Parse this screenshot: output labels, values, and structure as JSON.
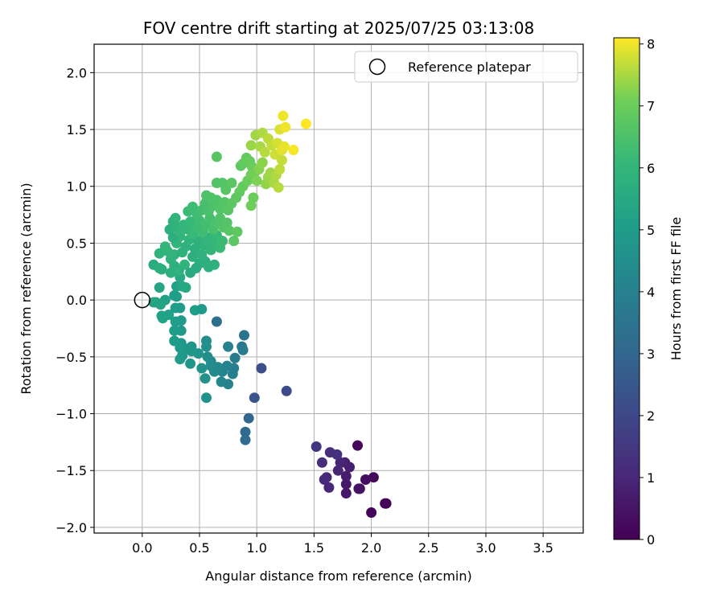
{
  "chart_data": {
    "type": "scatter",
    "title": "FOV centre drift starting at 2025/07/25 03:13:08",
    "xlabel": "Angular distance from reference (arcmin)",
    "ylabel": "Rotation from reference (arcmin)",
    "xlim": [
      -0.42,
      3.85
    ],
    "ylim": [
      -2.05,
      2.25
    ],
    "xticks": [
      0.0,
      0.5,
      1.0,
      1.5,
      2.0,
      2.5,
      3.0,
      3.5
    ],
    "xtick_labels": [
      "0.0",
      "0.5",
      "1.0",
      "1.5",
      "2.0",
      "2.5",
      "3.0",
      "3.5"
    ],
    "yticks": [
      2.0,
      1.5,
      1.0,
      0.5,
      0.0,
      -0.5,
      -1.0,
      -1.5,
      -2.0
    ],
    "ytick_labels": [
      "2.0",
      "1.5",
      "1.0",
      "0.5",
      "0.0",
      "−0.5",
      "−1.0",
      "−1.5",
      "−2.0"
    ],
    "grid": true,
    "colormap": "viridis",
    "colorbar": {
      "label": "Hours from first FF file",
      "range": [
        0,
        8.1
      ],
      "ticks": [
        0,
        1,
        2,
        3,
        4,
        5,
        6,
        7,
        8
      ],
      "tick_labels": [
        "0",
        "1",
        "2",
        "3",
        "4",
        "5",
        "6",
        "7",
        "8"
      ]
    },
    "legend": {
      "placement": "top-right",
      "entries": [
        "Reference platepar"
      ]
    },
    "reference_point": {
      "x": 0.0,
      "y": 0.0,
      "label": "Reference platepar"
    },
    "points": [
      {
        "x": 2.0,
        "y": -1.87,
        "t": 0.1
      },
      {
        "x": 2.13,
        "y": -1.79,
        "t": 0.05
      },
      {
        "x": 2.12,
        "y": -1.79,
        "t": 0.1
      },
      {
        "x": 1.88,
        "y": -1.28,
        "t": 0.15
      },
      {
        "x": 2.02,
        "y": -1.56,
        "t": 0.2
      },
      {
        "x": 1.95,
        "y": -1.58,
        "t": 0.3
      },
      {
        "x": 1.9,
        "y": -1.66,
        "t": 0.4
      },
      {
        "x": 1.89,
        "y": -1.66,
        "t": 0.45
      },
      {
        "x": 1.78,
        "y": -1.7,
        "t": 0.55
      },
      {
        "x": 1.78,
        "y": -1.62,
        "t": 0.6
      },
      {
        "x": 1.78,
        "y": -1.55,
        "t": 0.7
      },
      {
        "x": 1.81,
        "y": -1.47,
        "t": 0.75
      },
      {
        "x": 1.77,
        "y": -1.43,
        "t": 0.8
      },
      {
        "x": 1.73,
        "y": -1.43,
        "t": 0.9
      },
      {
        "x": 1.71,
        "y": -1.5,
        "t": 0.95
      },
      {
        "x": 1.63,
        "y": -1.65,
        "t": 1.0
      },
      {
        "x": 1.61,
        "y": -1.56,
        "t": 1.05
      },
      {
        "x": 1.59,
        "y": -1.58,
        "t": 1.1
      },
      {
        "x": 1.57,
        "y": -1.43,
        "t": 1.2
      },
      {
        "x": 1.64,
        "y": -1.34,
        "t": 1.25
      },
      {
        "x": 1.7,
        "y": -1.36,
        "t": 1.3
      },
      {
        "x": 1.52,
        "y": -1.29,
        "t": 1.4
      },
      {
        "x": 1.26,
        "y": -0.8,
        "t": 2.05
      },
      {
        "x": 1.04,
        "y": -0.6,
        "t": 2.2
      },
      {
        "x": 0.98,
        "y": -0.86,
        "t": 2.4
      },
      {
        "x": 0.93,
        "y": -1.04,
        "t": 3.0
      },
      {
        "x": 0.9,
        "y": -1.16,
        "t": 3.1
      },
      {
        "x": 0.9,
        "y": -1.23,
        "t": 3.2
      },
      {
        "x": 0.65,
        "y": -0.19,
        "t": 3.3
      },
      {
        "x": 0.89,
        "y": -0.31,
        "t": 3.5
      },
      {
        "x": 0.87,
        "y": -0.41,
        "t": 3.6
      },
      {
        "x": 0.88,
        "y": -0.44,
        "t": 3.7
      },
      {
        "x": 0.81,
        "y": -0.51,
        "t": 3.8
      },
      {
        "x": 0.8,
        "y": -0.6,
        "t": 3.9
      },
      {
        "x": 0.79,
        "y": -0.65,
        "t": 3.95
      },
      {
        "x": 0.75,
        "y": -0.41,
        "t": 4.0
      },
      {
        "x": 0.74,
        "y": -0.58,
        "t": 4.05
      },
      {
        "x": 0.75,
        "y": -0.74,
        "t": 4.1
      },
      {
        "x": 0.7,
        "y": -0.63,
        "t": 4.15
      },
      {
        "x": 0.69,
        "y": -0.72,
        "t": 4.2
      },
      {
        "x": 0.66,
        "y": -0.59,
        "t": 4.25
      },
      {
        "x": 0.63,
        "y": -0.63,
        "t": 4.3
      },
      {
        "x": 0.6,
        "y": -0.54,
        "t": 4.35
      },
      {
        "x": 0.6,
        "y": -0.58,
        "t": 4.4
      },
      {
        "x": 0.57,
        "y": -0.5,
        "t": 4.45
      },
      {
        "x": 0.56,
        "y": -0.36,
        "t": 4.5
      },
      {
        "x": 0.56,
        "y": -0.41,
        "t": 4.55
      },
      {
        "x": 0.56,
        "y": -0.86,
        "t": 4.6
      },
      {
        "x": 0.55,
        "y": -0.69,
        "t": 4.62
      },
      {
        "x": 0.52,
        "y": -0.6,
        "t": 4.65
      },
      {
        "x": 0.49,
        "y": -0.47,
        "t": 4.7
      },
      {
        "x": 0.43,
        "y": -0.41,
        "t": 4.72
      },
      {
        "x": 0.42,
        "y": -0.56,
        "t": 4.75
      },
      {
        "x": 0.43,
        "y": -0.45,
        "t": 4.78
      },
      {
        "x": 0.38,
        "y": -0.43,
        "t": 4.8
      },
      {
        "x": 0.35,
        "y": -0.49,
        "t": 4.82
      },
      {
        "x": 0.34,
        "y": -0.38,
        "t": 4.85
      },
      {
        "x": 0.34,
        "y": -0.27,
        "t": 4.87
      },
      {
        "x": 0.34,
        "y": -0.18,
        "t": 4.9
      },
      {
        "x": 0.33,
        "y": -0.07,
        "t": 4.92
      },
      {
        "x": 0.33,
        "y": -0.42,
        "t": 4.95
      },
      {
        "x": 0.33,
        "y": -0.52,
        "t": 4.97
      },
      {
        "x": 0.28,
        "y": -0.36,
        "t": 5.0
      },
      {
        "x": 0.28,
        "y": -0.27,
        "t": 5.02
      },
      {
        "x": 0.29,
        "y": -0.19,
        "t": 5.05
      },
      {
        "x": 0.29,
        "y": -0.07,
        "t": 5.07
      },
      {
        "x": 0.3,
        "y": 0.03,
        "t": 5.1
      },
      {
        "x": 0.28,
        "y": 0.04,
        "t": 5.12
      },
      {
        "x": 0.3,
        "y": 0.12,
        "t": 5.15
      },
      {
        "x": 0.23,
        "y": -0.13,
        "t": 5.17
      },
      {
        "x": 0.2,
        "y": 0.0,
        "t": 5.2
      },
      {
        "x": 0.17,
        "y": -0.14,
        "t": 5.22
      },
      {
        "x": 0.18,
        "y": -0.16,
        "t": 5.25
      },
      {
        "x": 0.16,
        "y": -0.04,
        "t": 5.27
      },
      {
        "x": 0.12,
        "y": -0.02,
        "t": 5.3
      },
      {
        "x": 0.1,
        "y": -0.02,
        "t": 5.32
      },
      {
        "x": 0.15,
        "y": 0.11,
        "t": 5.35
      },
      {
        "x": 0.35,
        "y": 0.12,
        "t": 5.4
      },
      {
        "x": 0.38,
        "y": 0.11,
        "t": 5.45
      },
      {
        "x": 0.33,
        "y": 0.2,
        "t": 5.5
      },
      {
        "x": 0.46,
        "y": -0.09,
        "t": 5.1
      },
      {
        "x": 0.52,
        "y": -0.08,
        "t": 5.0
      },
      {
        "x": 0.1,
        "y": 0.31,
        "t": 5.6
      },
      {
        "x": 0.15,
        "y": 0.28,
        "t": 5.65
      },
      {
        "x": 0.17,
        "y": 0.27,
        "t": 5.7
      },
      {
        "x": 0.25,
        "y": 0.24,
        "t": 5.75
      },
      {
        "x": 0.28,
        "y": 0.3,
        "t": 5.8
      },
      {
        "x": 0.32,
        "y": 0.26,
        "t": 5.85
      },
      {
        "x": 0.37,
        "y": 0.31,
        "t": 5.9
      },
      {
        "x": 0.42,
        "y": 0.24,
        "t": 5.55
      },
      {
        "x": 0.47,
        "y": 0.28,
        "t": 5.6
      },
      {
        "x": 0.5,
        "y": 0.32,
        "t": 5.65
      },
      {
        "x": 0.55,
        "y": 0.34,
        "t": 5.7
      },
      {
        "x": 0.58,
        "y": 0.29,
        "t": 5.75
      },
      {
        "x": 0.63,
        "y": 0.31,
        "t": 5.8
      },
      {
        "x": 0.15,
        "y": 0.41,
        "t": 5.9
      },
      {
        "x": 0.2,
        "y": 0.47,
        "t": 5.95
      },
      {
        "x": 0.22,
        "y": 0.43,
        "t": 6.0
      },
      {
        "x": 0.25,
        "y": 0.36,
        "t": 5.85
      },
      {
        "x": 0.28,
        "y": 0.4,
        "t": 5.9
      },
      {
        "x": 0.3,
        "y": 0.5,
        "t": 5.95
      },
      {
        "x": 0.33,
        "y": 0.56,
        "t": 6.0
      },
      {
        "x": 0.35,
        "y": 0.42,
        "t": 5.8
      },
      {
        "x": 0.38,
        "y": 0.47,
        "t": 5.85
      },
      {
        "x": 0.41,
        "y": 0.53,
        "t": 5.9
      },
      {
        "x": 0.44,
        "y": 0.38,
        "t": 5.7
      },
      {
        "x": 0.46,
        "y": 0.45,
        "t": 5.75
      },
      {
        "x": 0.49,
        "y": 0.52,
        "t": 5.8
      },
      {
        "x": 0.52,
        "y": 0.4,
        "t": 5.85
      },
      {
        "x": 0.54,
        "y": 0.48,
        "t": 5.9
      },
      {
        "x": 0.57,
        "y": 0.55,
        "t": 5.95
      },
      {
        "x": 0.6,
        "y": 0.44,
        "t": 6.0
      },
      {
        "x": 0.62,
        "y": 0.5,
        "t": 6.05
      },
      {
        "x": 0.65,
        "y": 0.57,
        "t": 6.1
      },
      {
        "x": 0.68,
        "y": 0.46,
        "t": 6.15
      },
      {
        "x": 0.7,
        "y": 0.52,
        "t": 6.2
      },
      {
        "x": 0.27,
        "y": 0.55,
        "t": 5.7
      },
      {
        "x": 0.24,
        "y": 0.62,
        "t": 5.75
      },
      {
        "x": 0.27,
        "y": 0.69,
        "t": 5.8
      },
      {
        "x": 0.3,
        "y": 0.64,
        "t": 5.85
      },
      {
        "x": 0.29,
        "y": 0.72,
        "t": 5.9
      },
      {
        "x": 0.33,
        "y": 0.6,
        "t": 5.95
      },
      {
        "x": 0.36,
        "y": 0.66,
        "t": 6.0
      },
      {
        "x": 0.4,
        "y": 0.62,
        "t": 6.05
      },
      {
        "x": 0.42,
        "y": 0.69,
        "t": 6.1
      },
      {
        "x": 0.45,
        "y": 0.58,
        "t": 6.15
      },
      {
        "x": 0.48,
        "y": 0.64,
        "t": 6.2
      },
      {
        "x": 0.5,
        "y": 0.7,
        "t": 6.25
      },
      {
        "x": 0.53,
        "y": 0.6,
        "t": 6.3
      },
      {
        "x": 0.56,
        "y": 0.66,
        "t": 6.35
      },
      {
        "x": 0.59,
        "y": 0.72,
        "t": 6.4
      },
      {
        "x": 0.62,
        "y": 0.62,
        "t": 6.45
      },
      {
        "x": 0.65,
        "y": 0.67,
        "t": 6.5
      },
      {
        "x": 0.68,
        "y": 0.72,
        "t": 6.55
      },
      {
        "x": 0.71,
        "y": 0.64,
        "t": 6.6
      },
      {
        "x": 0.74,
        "y": 0.68,
        "t": 6.65
      },
      {
        "x": 0.76,
        "y": 0.61,
        "t": 6.7
      },
      {
        "x": 0.8,
        "y": 0.52,
        "t": 6.75
      },
      {
        "x": 0.83,
        "y": 0.6,
        "t": 6.8
      },
      {
        "x": 0.4,
        "y": 0.78,
        "t": 6.2
      },
      {
        "x": 0.44,
        "y": 0.82,
        "t": 6.25
      },
      {
        "x": 0.48,
        "y": 0.75,
        "t": 6.3
      },
      {
        "x": 0.52,
        "y": 0.79,
        "t": 6.35
      },
      {
        "x": 0.55,
        "y": 0.85,
        "t": 6.4
      },
      {
        "x": 0.58,
        "y": 0.78,
        "t": 6.45
      },
      {
        "x": 0.62,
        "y": 0.83,
        "t": 6.5
      },
      {
        "x": 0.65,
        "y": 0.88,
        "t": 6.55
      },
      {
        "x": 0.68,
        "y": 0.8,
        "t": 6.6
      },
      {
        "x": 0.72,
        "y": 0.86,
        "t": 6.65
      },
      {
        "x": 0.75,
        "y": 0.79,
        "t": 6.7
      },
      {
        "x": 0.78,
        "y": 0.85,
        "t": 6.75
      },
      {
        "x": 0.82,
        "y": 0.9,
        "t": 6.8
      },
      {
        "x": 0.85,
        "y": 0.95,
        "t": 6.85
      },
      {
        "x": 0.88,
        "y": 1.0,
        "t": 6.9
      },
      {
        "x": 0.56,
        "y": 0.92,
        "t": 6.5
      },
      {
        "x": 0.6,
        "y": 0.9,
        "t": 6.55
      },
      {
        "x": 0.65,
        "y": 1.03,
        "t": 6.6
      },
      {
        "x": 0.7,
        "y": 1.03,
        "t": 6.65
      },
      {
        "x": 0.73,
        "y": 0.97,
        "t": 6.7
      },
      {
        "x": 0.78,
        "y": 1.03,
        "t": 6.75
      },
      {
        "x": 0.86,
        "y": 1.18,
        "t": 6.8
      },
      {
        "x": 0.88,
        "y": 1.2,
        "t": 6.85
      },
      {
        "x": 0.91,
        "y": 1.25,
        "t": 6.9
      },
      {
        "x": 0.94,
        "y": 1.22,
        "t": 6.95
      },
      {
        "x": 0.96,
        "y": 1.17,
        "t": 7.0
      },
      {
        "x": 0.92,
        "y": 1.05,
        "t": 7.0
      },
      {
        "x": 0.95,
        "y": 1.1,
        "t": 7.05
      },
      {
        "x": 0.98,
        "y": 1.12,
        "t": 7.1
      },
      {
        "x": 0.97,
        "y": 0.9,
        "t": 7.0
      },
      {
        "x": 0.95,
        "y": 0.83,
        "t": 7.05
      },
      {
        "x": 0.65,
        "y": 1.26,
        "t": 6.7
      },
      {
        "x": 1.0,
        "y": 1.05,
        "t": 7.2
      },
      {
        "x": 1.02,
        "y": 1.15,
        "t": 7.25
      },
      {
        "x": 1.05,
        "y": 1.21,
        "t": 7.3
      },
      {
        "x": 1.08,
        "y": 1.02,
        "t": 7.35
      },
      {
        "x": 1.1,
        "y": 1.08,
        "t": 7.4
      },
      {
        "x": 1.12,
        "y": 1.12,
        "t": 7.45
      },
      {
        "x": 1.15,
        "y": 1.03,
        "t": 7.5
      },
      {
        "x": 1.17,
        "y": 1.1,
        "t": 7.55
      },
      {
        "x": 1.19,
        "y": 0.99,
        "t": 7.6
      },
      {
        "x": 1.2,
        "y": 1.15,
        "t": 7.65
      },
      {
        "x": 1.22,
        "y": 1.23,
        "t": 7.7
      },
      {
        "x": 0.95,
        "y": 1.36,
        "t": 7.4
      },
      {
        "x": 0.99,
        "y": 1.45,
        "t": 7.45
      },
      {
        "x": 1.03,
        "y": 1.35,
        "t": 7.5
      },
      {
        "x": 1.05,
        "y": 1.47,
        "t": 7.55
      },
      {
        "x": 1.07,
        "y": 1.3,
        "t": 7.6
      },
      {
        "x": 1.1,
        "y": 1.42,
        "t": 7.65
      },
      {
        "x": 1.13,
        "y": 1.36,
        "t": 7.7
      },
      {
        "x": 1.16,
        "y": 1.28,
        "t": 7.75
      },
      {
        "x": 1.18,
        "y": 1.38,
        "t": 7.8
      },
      {
        "x": 1.2,
        "y": 1.5,
        "t": 7.85
      },
      {
        "x": 1.22,
        "y": 1.32,
        "t": 7.9
      },
      {
        "x": 1.24,
        "y": 1.35,
        "t": 7.95
      },
      {
        "x": 1.23,
        "y": 1.62,
        "t": 8.0
      },
      {
        "x": 1.25,
        "y": 1.52,
        "t": 8.0
      },
      {
        "x": 1.32,
        "y": 1.32,
        "t": 8.05
      },
      {
        "x": 1.43,
        "y": 1.55,
        "t": 8.1
      }
    ]
  }
}
